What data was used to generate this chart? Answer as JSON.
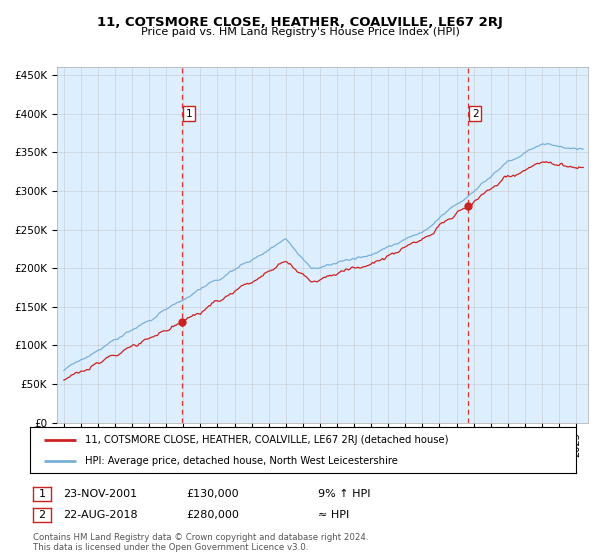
{
  "title": "11, COTSMORE CLOSE, HEATHER, COALVILLE, LE67 2RJ",
  "subtitle": "Price paid vs. HM Land Registry's House Price Index (HPI)",
  "plot_bg_color": "#ddeeff",
  "ylim": [
    0,
    460000
  ],
  "yticks": [
    0,
    50000,
    100000,
    150000,
    200000,
    250000,
    300000,
    350000,
    400000,
    450000
  ],
  "sale1_date_num": 2001.9,
  "sale1_price": 130000,
  "sale1_date_str": "23-NOV-2001",
  "sale1_price_str": "£130,000",
  "sale1_hpi_str": "9% ↑ HPI",
  "sale2_date_num": 2018.65,
  "sale2_price": 280000,
  "sale2_date_str": "22-AUG-2018",
  "sale2_price_str": "£280,000",
  "sale2_hpi_str": "≈ HPI",
  "legend_line1": "11, COTSMORE CLOSE, HEATHER, COALVILLE, LE67 2RJ (detached house)",
  "legend_line2": "HPI: Average price, detached house, North West Leicestershire",
  "footnote1": "Contains HM Land Registry data © Crown copyright and database right 2024.",
  "footnote2": "This data is licensed under the Open Government Licence v3.0.",
  "hpi_color": "#7ab0d8",
  "price_color": "#cc2222",
  "vline_color": "#dd3333",
  "grid_color": "#bbbbbb",
  "start_year": 1995.0,
  "end_year": 2025.5,
  "xlim_start": 1994.6,
  "xlim_end": 2025.7
}
